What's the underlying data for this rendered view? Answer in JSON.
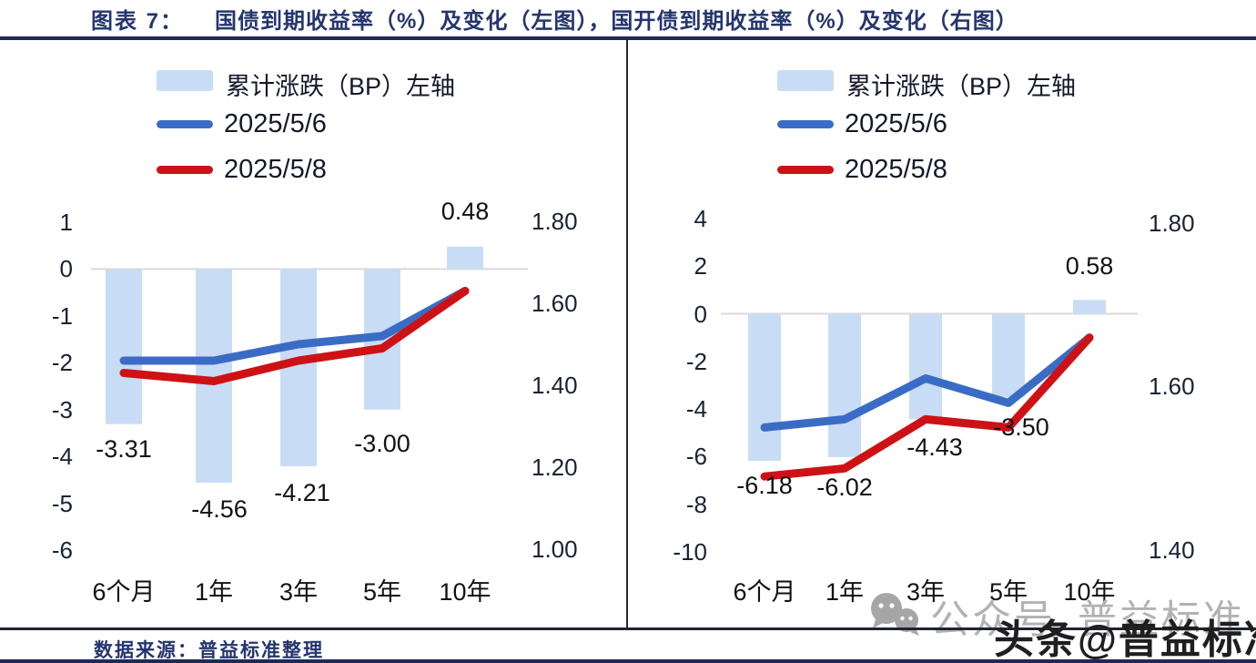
{
  "title": {
    "label": "图表 7：",
    "text": "国债到期收益率（%）及变化（左图），国开债到期收益率（%）及变化（右图）"
  },
  "legend": {
    "bar_label": "累计涨跌（BP）左轴",
    "line1_label": "2025/5/6",
    "line2_label": "2025/5/8"
  },
  "colors": {
    "bar": "#c9dcf5",
    "line_2025_5_6": "#3b6cc5",
    "line_2025_5_8": "#cd1216",
    "navy": "#24356f",
    "axis_line": "#d9d9d9"
  },
  "source": "数据来源：普益标准整理",
  "watermark": {
    "gray_prefix": "公众号",
    "gray_name": "普益标准",
    "dark": "头条@普益标准"
  },
  "chart_data": [
    {
      "type": "bar",
      "combo": "bar+line",
      "title": "国债到期收益率（%）及变化（左图）",
      "categories": [
        "6个月",
        "1年",
        "3年",
        "5年",
        "10年"
      ],
      "bar_series": {
        "name": "累计涨跌（BP）左轴",
        "axis": "left",
        "values": [
          -3.31,
          -4.56,
          -4.21,
          -3.0,
          0.48
        ],
        "labels": [
          "-3.31",
          "-4.56",
          "-4.21",
          "-3.00",
          "0.48"
        ]
      },
      "line_series": [
        {
          "name": "2025/5/6",
          "axis": "right",
          "values": [
            1.46,
            1.46,
            1.5,
            1.52,
            1.63
          ]
        },
        {
          "name": "2025/5/8",
          "axis": "right",
          "values": [
            1.43,
            1.41,
            1.46,
            1.49,
            1.63
          ]
        }
      ],
      "left_axis_ticks": [
        "1",
        "0",
        "-1",
        "-2",
        "-3",
        "-4",
        "-5",
        "-6"
      ],
      "right_axis_ticks": [
        "1.80",
        "1.60",
        "1.40",
        "1.20",
        "1.00"
      ],
      "left_axis_range": [
        -6,
        1
      ],
      "right_axis_range": [
        1.0,
        1.8
      ],
      "grid": false,
      "legend_position": "top-left"
    },
    {
      "type": "bar",
      "combo": "bar+line",
      "title": "国开债到期收益率（%）及变化（右图）",
      "categories": [
        "6个月",
        "1年",
        "3年",
        "5年",
        "10年"
      ],
      "bar_series": {
        "name": "累计涨跌（BP）左轴",
        "axis": "left",
        "values": [
          -6.18,
          -6.02,
          -4.43,
          -3.5,
          0.58
        ],
        "labels": [
          "-6.18",
          "-6.02",
          "-4.43",
          "-3.50",
          "0.58"
        ]
      },
      "line_series": [
        {
          "name": "2025/5/6",
          "axis": "right",
          "values": [
            1.55,
            1.56,
            1.61,
            1.58,
            1.66
          ]
        },
        {
          "name": "2025/5/8",
          "axis": "right",
          "values": [
            1.49,
            1.5,
            1.56,
            1.55,
            1.66
          ]
        }
      ],
      "left_axis_ticks": [
        "4",
        "2",
        "0",
        "-2",
        "-4",
        "-6",
        "-8",
        "-10"
      ],
      "right_axis_ticks": [
        "1.80",
        "1.60",
        "1.40"
      ],
      "left_axis_range": [
        -10,
        4
      ],
      "right_axis_range": [
        1.4,
        1.8
      ],
      "grid": false,
      "legend_position": "top-left"
    }
  ]
}
